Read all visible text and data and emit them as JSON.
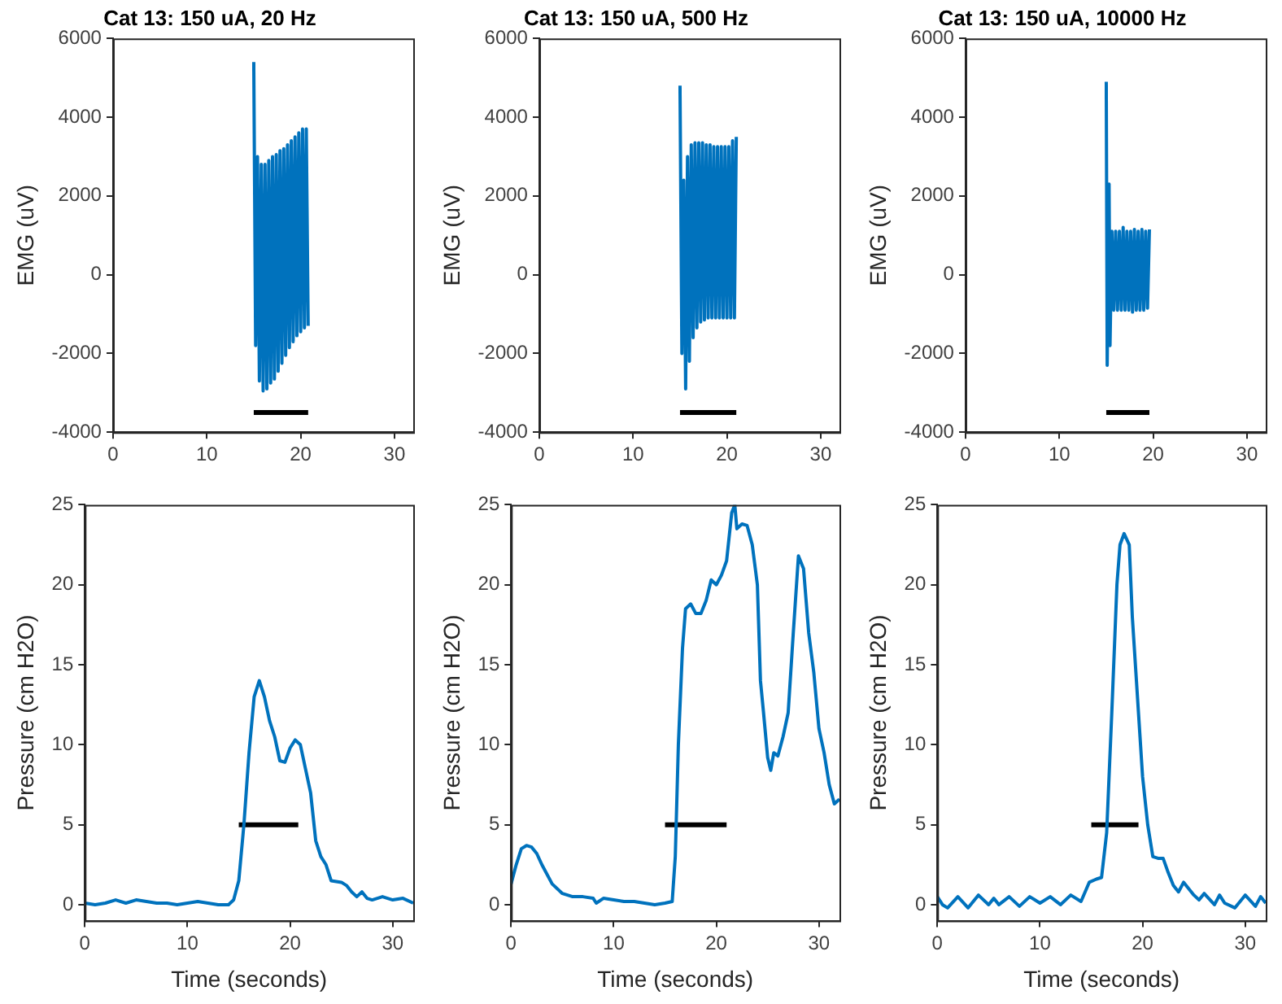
{
  "chart_data": [
    {
      "type": "line",
      "title": "Cat 13: 150 uA, 20 Hz",
      "ylabel": "EMG (uV)",
      "xlim": [
        0,
        32
      ],
      "xticks": [
        0,
        10,
        20,
        30
      ],
      "ylim": [
        -4000,
        6000
      ],
      "yticks": [
        -4000,
        -2000,
        0,
        2000,
        4000,
        6000
      ],
      "series": [
        {
          "color": "#0072bd",
          "x": [
            15.0,
            15.2,
            15.4,
            15.6,
            15.8,
            16.0,
            16.2,
            16.4,
            16.6,
            16.8,
            17.0,
            17.2,
            17.4,
            17.6,
            17.8,
            18.0,
            18.2,
            18.4,
            18.6,
            18.8,
            19.0,
            19.2,
            19.4,
            19.6,
            19.8,
            20.0,
            20.2,
            20.4,
            20.6,
            20.8
          ],
          "values": [
            5400,
            -1800,
            3000,
            -2700,
            2800,
            -2950,
            2800,
            -2900,
            2900,
            -2750,
            3000,
            -2650,
            3050,
            -2450,
            3150,
            -2250,
            3200,
            -2050,
            3300,
            -1850,
            3400,
            -1700,
            3500,
            -1550,
            3600,
            -1450,
            3700,
            -1350,
            3700,
            -1300
          ]
        },
        {
          "color": "#000000",
          "x": [
            15,
            20.8
          ],
          "values": [
            -3500,
            -3500
          ]
        }
      ]
    },
    {
      "type": "line",
      "title": "Cat 13: 150 uA, 500 Hz",
      "ylabel": "EMG (uV)",
      "xlim": [
        0,
        32
      ],
      "xticks": [
        0,
        10,
        20,
        30
      ],
      "ylim": [
        -4000,
        6000
      ],
      "yticks": [
        -4000,
        -2000,
        0,
        2000,
        4000,
        6000
      ],
      "series": [
        {
          "color": "#0072bd",
          "x": [
            15.0,
            15.2,
            15.4,
            15.6,
            15.8,
            16.0,
            16.2,
            16.4,
            16.6,
            16.8,
            17.0,
            17.2,
            17.4,
            17.6,
            17.8,
            18.0,
            18.2,
            18.4,
            18.6,
            18.8,
            19.0,
            19.2,
            19.4,
            19.6,
            19.8,
            20.0,
            20.2,
            20.4,
            20.6,
            20.8,
            21.0
          ],
          "values": [
            4800,
            -2000,
            2400,
            -2900,
            3000,
            -2200,
            3300,
            -1600,
            3350,
            -1350,
            3350,
            -1200,
            3350,
            -1150,
            3300,
            -1100,
            3300,
            -1100,
            3250,
            -1100,
            3250,
            -1100,
            3250,
            -1100,
            3250,
            -1100,
            3250,
            -1100,
            3400,
            -1100,
            3500
          ]
        },
        {
          "color": "#000000",
          "x": [
            15,
            21
          ],
          "values": [
            -3500,
            -3500
          ]
        }
      ]
    },
    {
      "type": "line",
      "title": "Cat 13: 150 uA, 10000 Hz",
      "ylabel": "EMG (uV)",
      "xlim": [
        0,
        32
      ],
      "xticks": [
        0,
        10,
        20,
        30
      ],
      "ylim": [
        -4000,
        6000
      ],
      "yticks": [
        -4000,
        -2000,
        0,
        2000,
        4000,
        6000
      ],
      "series": [
        {
          "color": "#0072bd",
          "x": [
            15.0,
            15.1,
            15.3,
            15.4,
            15.6,
            15.8,
            16.0,
            16.2,
            16.4,
            16.6,
            16.8,
            17.0,
            17.2,
            17.4,
            17.6,
            17.8,
            18.0,
            18.2,
            18.4,
            18.6,
            18.8,
            19.0,
            19.2,
            19.4,
            19.6
          ],
          "values": [
            4900,
            -2300,
            2300,
            -1800,
            1100,
            -900,
            1100,
            -900,
            1100,
            -900,
            1200,
            -900,
            1100,
            -900,
            1100,
            -950,
            1150,
            -900,
            1100,
            -900,
            1150,
            -900,
            1100,
            -850,
            1150
          ]
        },
        {
          "color": "#000000",
          "x": [
            15,
            19.6
          ],
          "values": [
            -3500,
            -3500
          ]
        }
      ]
    },
    {
      "type": "line",
      "xlabel": "Time (seconds)",
      "ylabel": "Pressure (cm H2O)",
      "xlim": [
        0,
        32
      ],
      "xticks": [
        0,
        10,
        20,
        30
      ],
      "ylim": [
        -1,
        25
      ],
      "yticks": [
        0,
        5,
        10,
        15,
        20,
        25
      ],
      "series": [
        {
          "color": "#0072bd",
          "x": [
            0,
            1,
            2,
            3,
            4,
            5,
            6,
            7,
            8,
            9,
            10,
            11,
            12,
            13,
            14,
            14.5,
            15,
            15.5,
            16,
            16.5,
            17,
            17.5,
            18,
            18.5,
            19,
            19.5,
            20,
            20.5,
            21,
            21.5,
            22,
            22.5,
            23,
            23.5,
            24,
            25,
            25.5,
            26,
            26.5,
            27,
            27.5,
            28,
            29,
            30,
            31,
            32
          ],
          "values": [
            0.1,
            0,
            0.1,
            0.3,
            0.1,
            0.3,
            0.2,
            0.1,
            0.1,
            0,
            0.1,
            0.2,
            0.1,
            0,
            0,
            0.3,
            1.5,
            5,
            9.5,
            13,
            14,
            13,
            11.5,
            10.5,
            9,
            8.9,
            9.8,
            10.3,
            10,
            8.5,
            7,
            4,
            3,
            2.5,
            1.5,
            1.4,
            1.2,
            0.8,
            0.5,
            0.8,
            0.4,
            0.3,
            0.5,
            0.3,
            0.4,
            0.1
          ]
        },
        {
          "color": "#000000",
          "x": [
            15,
            20.8
          ],
          "values": [
            5,
            5
          ]
        }
      ]
    },
    {
      "type": "line",
      "xlabel": "Time (seconds)",
      "ylabel": "Pressure (cm H2O)",
      "xlim": [
        0,
        32
      ],
      "xticks": [
        0,
        10,
        20,
        30
      ],
      "ylim": [
        -1,
        25
      ],
      "yticks": [
        0,
        5,
        10,
        15,
        20,
        25
      ],
      "series": [
        {
          "color": "#0072bd",
          "x": [
            0,
            0.5,
            1,
            1.5,
            2,
            2.5,
            3,
            4,
            5,
            6,
            7,
            8,
            8.3,
            9,
            10,
            11,
            12,
            13,
            14,
            15,
            15.7,
            16,
            16.3,
            16.7,
            17,
            17.5,
            18,
            18.5,
            19,
            19.5,
            20,
            20.5,
            21,
            21.5,
            21.8,
            22,
            22.5,
            23,
            23.5,
            24,
            24.3,
            24.6,
            25,
            25.3,
            25.6,
            26,
            26.5,
            27,
            27.5,
            28,
            28.5,
            29,
            29.5,
            30,
            30.5,
            31,
            31.5,
            32
          ],
          "values": [
            1.3,
            2.5,
            3.5,
            3.7,
            3.6,
            3.2,
            2.5,
            1.3,
            0.7,
            0.5,
            0.5,
            0.4,
            0.1,
            0.4,
            0.3,
            0.2,
            0.2,
            0.1,
            0,
            0.1,
            0.2,
            3,
            10,
            16,
            18.5,
            18.8,
            18.2,
            18.2,
            19,
            20.3,
            20,
            20.6,
            21.5,
            24.5,
            25,
            23.5,
            23.8,
            23.7,
            22.5,
            20,
            14,
            12,
            9.2,
            8.4,
            9.5,
            9.3,
            10.5,
            12,
            17,
            21.8,
            21,
            17,
            14.5,
            11,
            9.5,
            7.5,
            6.3,
            6.6
          ]
        },
        {
          "color": "#000000",
          "x": [
            15,
            21
          ],
          "values": [
            5,
            5
          ]
        }
      ]
    },
    {
      "type": "line",
      "xlabel": "Time (seconds)",
      "ylabel": "Pressure (cm H2O)",
      "xlim": [
        0,
        32
      ],
      "xticks": [
        0,
        10,
        20,
        30
      ],
      "ylim": [
        -1,
        25
      ],
      "yticks": [
        0,
        5,
        10,
        15,
        20,
        25
      ],
      "series": [
        {
          "color": "#0072bd",
          "x": [
            0,
            0.5,
            1,
            2,
            3,
            4,
            5,
            5.5,
            6,
            7,
            8,
            9,
            10,
            11,
            12,
            13,
            14,
            14.8,
            15.5,
            16,
            16.5,
            17,
            17.5,
            17.8,
            18.2,
            18.7,
            19,
            19.5,
            20,
            20.5,
            21,
            21.5,
            22,
            22.5,
            23,
            23.5,
            24,
            25,
            25.5,
            26,
            27,
            27.5,
            28,
            29,
            30,
            31,
            31.5,
            32
          ],
          "values": [
            0.5,
            0,
            -0.2,
            0.5,
            -0.2,
            0.6,
            0,
            0.4,
            0,
            0.5,
            -0.1,
            0.5,
            0.1,
            0.5,
            0,
            0.6,
            0.2,
            1.4,
            1.6,
            1.7,
            4.5,
            12,
            20,
            22.5,
            23.2,
            22.5,
            18,
            13,
            8,
            5,
            3,
            2.9,
            2.9,
            2,
            1.2,
            0.8,
            1.4,
            0.6,
            0.3,
            0.7,
            0,
            0.6,
            0.1,
            -0.2,
            0.6,
            -0.1,
            0.5,
            0.1
          ]
        },
        {
          "color": "#000000",
          "x": [
            15,
            19.6
          ],
          "values": [
            5,
            5
          ]
        }
      ]
    }
  ]
}
